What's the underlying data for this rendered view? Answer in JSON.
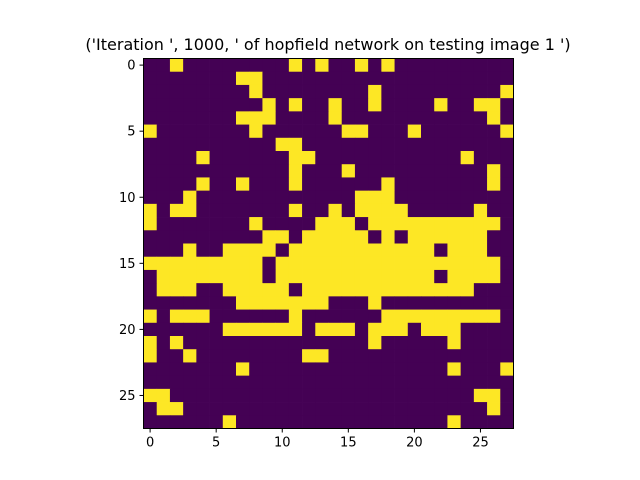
{
  "chart_data": {
    "type": "heatmap",
    "title": "('Iteration ', 1000, ' of hopfield network on testing image 1 ')",
    "xlabel": "",
    "ylabel": "",
    "xlim": [
      -0.5,
      27.5
    ],
    "ylim": [
      27.5,
      -0.5
    ],
    "x_ticks": [
      0,
      5,
      10,
      15,
      20,
      25
    ],
    "y_ticks": [
      0,
      5,
      10,
      15,
      20,
      25
    ],
    "x_tick_labels": [
      "0",
      "5",
      "10",
      "15",
      "20",
      "25"
    ],
    "y_tick_labels": [
      "0",
      "5",
      "10",
      "15",
      "20",
      "25"
    ],
    "grid": false,
    "colormap": {
      "low": "#440154",
      "high": "#fde725"
    },
    "values": [
      [
        0,
        0,
        1,
        0,
        0,
        0,
        0,
        0,
        0,
        0,
        0,
        1,
        0,
        1,
        0,
        0,
        1,
        0,
        1,
        0,
        0,
        0,
        0,
        0,
        0,
        0,
        0,
        0
      ],
      [
        0,
        0,
        0,
        0,
        0,
        0,
        0,
        1,
        1,
        0,
        0,
        0,
        0,
        0,
        0,
        0,
        0,
        0,
        0,
        0,
        0,
        0,
        0,
        0,
        0,
        0,
        0,
        0
      ],
      [
        0,
        0,
        0,
        0,
        0,
        0,
        0,
        0,
        1,
        0,
        0,
        0,
        0,
        0,
        0,
        0,
        0,
        1,
        0,
        0,
        0,
        0,
        0,
        0,
        0,
        0,
        0,
        1
      ],
      [
        0,
        0,
        0,
        0,
        0,
        0,
        0,
        0,
        0,
        1,
        0,
        1,
        0,
        0,
        1,
        0,
        0,
        1,
        0,
        0,
        0,
        0,
        1,
        0,
        0,
        1,
        1,
        0
      ],
      [
        0,
        0,
        0,
        0,
        0,
        0,
        0,
        1,
        1,
        1,
        0,
        0,
        0,
        0,
        1,
        0,
        0,
        0,
        0,
        0,
        0,
        0,
        0,
        0,
        0,
        0,
        1,
        0
      ],
      [
        1,
        0,
        0,
        0,
        0,
        0,
        0,
        0,
        1,
        0,
        0,
        0,
        0,
        0,
        0,
        1,
        1,
        0,
        0,
        0,
        1,
        0,
        0,
        0,
        0,
        0,
        0,
        1
      ],
      [
        0,
        0,
        0,
        0,
        0,
        0,
        0,
        0,
        0,
        0,
        1,
        1,
        0,
        0,
        0,
        0,
        0,
        0,
        0,
        0,
        0,
        0,
        0,
        0,
        0,
        0,
        0,
        0
      ],
      [
        0,
        0,
        0,
        0,
        1,
        0,
        0,
        0,
        0,
        0,
        0,
        1,
        1,
        0,
        0,
        0,
        0,
        0,
        0,
        0,
        0,
        0,
        0,
        0,
        1,
        0,
        0,
        0
      ],
      [
        0,
        0,
        0,
        0,
        0,
        0,
        0,
        0,
        0,
        0,
        0,
        1,
        0,
        0,
        0,
        1,
        0,
        0,
        0,
        0,
        0,
        0,
        0,
        0,
        0,
        0,
        1,
        0
      ],
      [
        0,
        0,
        0,
        0,
        1,
        0,
        0,
        1,
        0,
        0,
        0,
        1,
        0,
        0,
        0,
        0,
        0,
        0,
        1,
        0,
        0,
        0,
        0,
        0,
        0,
        0,
        1,
        0
      ],
      [
        0,
        0,
        0,
        1,
        0,
        0,
        0,
        0,
        0,
        0,
        0,
        0,
        0,
        0,
        0,
        0,
        1,
        1,
        1,
        0,
        0,
        0,
        0,
        0,
        0,
        0,
        0,
        0
      ],
      [
        1,
        0,
        1,
        1,
        0,
        0,
        0,
        0,
        0,
        0,
        0,
        1,
        0,
        0,
        1,
        0,
        1,
        1,
        1,
        1,
        0,
        0,
        0,
        0,
        0,
        1,
        0,
        0
      ],
      [
        1,
        0,
        0,
        0,
        0,
        0,
        0,
        0,
        1,
        0,
        0,
        0,
        0,
        1,
        1,
        1,
        0,
        1,
        1,
        1,
        1,
        1,
        1,
        1,
        1,
        1,
        1,
        0
      ],
      [
        0,
        0,
        0,
        0,
        0,
        0,
        0,
        0,
        0,
        1,
        1,
        0,
        1,
        1,
        1,
        1,
        1,
        0,
        1,
        0,
        1,
        1,
        1,
        1,
        1,
        1,
        0,
        0
      ],
      [
        0,
        0,
        0,
        1,
        0,
        0,
        1,
        1,
        1,
        1,
        0,
        1,
        1,
        1,
        1,
        1,
        1,
        1,
        1,
        1,
        1,
        1,
        0,
        1,
        1,
        1,
        0,
        0
      ],
      [
        1,
        1,
        1,
        1,
        1,
        1,
        1,
        1,
        1,
        0,
        1,
        1,
        1,
        1,
        1,
        1,
        1,
        1,
        1,
        1,
        1,
        1,
        1,
        1,
        1,
        1,
        1,
        0
      ],
      [
        0,
        1,
        1,
        1,
        1,
        1,
        1,
        1,
        1,
        0,
        1,
        1,
        1,
        1,
        1,
        1,
        1,
        1,
        1,
        1,
        1,
        1,
        0,
        1,
        1,
        1,
        1,
        0
      ],
      [
        0,
        1,
        1,
        1,
        0,
        0,
        1,
        1,
        1,
        1,
        1,
        0,
        1,
        1,
        1,
        1,
        1,
        1,
        1,
        1,
        1,
        1,
        1,
        1,
        1,
        0,
        0,
        0
      ],
      [
        0,
        0,
        0,
        0,
        0,
        0,
        0,
        1,
        1,
        1,
        1,
        1,
        1,
        1,
        0,
        0,
        0,
        1,
        0,
        0,
        0,
        0,
        0,
        0,
        0,
        0,
        0,
        0
      ],
      [
        1,
        0,
        1,
        1,
        1,
        0,
        0,
        0,
        0,
        0,
        0,
        1,
        0,
        0,
        0,
        0,
        0,
        0,
        1,
        1,
        1,
        1,
        1,
        1,
        1,
        1,
        1,
        0
      ],
      [
        0,
        0,
        0,
        0,
        0,
        0,
        1,
        1,
        1,
        1,
        1,
        1,
        0,
        1,
        1,
        1,
        0,
        1,
        1,
        1,
        0,
        1,
        1,
        1,
        0,
        0,
        0,
        0
      ],
      [
        1,
        0,
        1,
        0,
        0,
        0,
        0,
        0,
        0,
        0,
        0,
        0,
        0,
        0,
        0,
        0,
        0,
        1,
        0,
        0,
        0,
        0,
        0,
        1,
        0,
        0,
        0,
        0
      ],
      [
        1,
        0,
        0,
        1,
        0,
        0,
        0,
        0,
        0,
        0,
        0,
        0,
        1,
        1,
        0,
        0,
        0,
        0,
        0,
        0,
        0,
        0,
        0,
        0,
        0,
        0,
        0,
        0
      ],
      [
        0,
        0,
        0,
        0,
        0,
        0,
        0,
        1,
        0,
        0,
        0,
        0,
        0,
        0,
        0,
        0,
        0,
        0,
        0,
        0,
        0,
        0,
        0,
        1,
        0,
        0,
        0,
        1
      ],
      [
        0,
        0,
        0,
        0,
        0,
        0,
        0,
        0,
        0,
        0,
        0,
        0,
        0,
        0,
        0,
        0,
        0,
        0,
        0,
        0,
        0,
        0,
        0,
        0,
        0,
        0,
        0,
        0
      ],
      [
        1,
        1,
        0,
        0,
        0,
        0,
        0,
        0,
        0,
        0,
        0,
        0,
        0,
        0,
        0,
        0,
        0,
        0,
        0,
        0,
        0,
        0,
        0,
        0,
        0,
        1,
        1,
        0
      ],
      [
        0,
        1,
        1,
        0,
        0,
        0,
        0,
        0,
        0,
        0,
        0,
        0,
        0,
        0,
        0,
        0,
        0,
        0,
        0,
        0,
        0,
        0,
        0,
        0,
        0,
        0,
        1,
        0
      ],
      [
        0,
        0,
        0,
        0,
        0,
        0,
        1,
        0,
        0,
        0,
        0,
        0,
        0,
        0,
        0,
        0,
        0,
        0,
        0,
        0,
        0,
        0,
        0,
        1,
        0,
        0,
        0,
        0
      ]
    ]
  }
}
